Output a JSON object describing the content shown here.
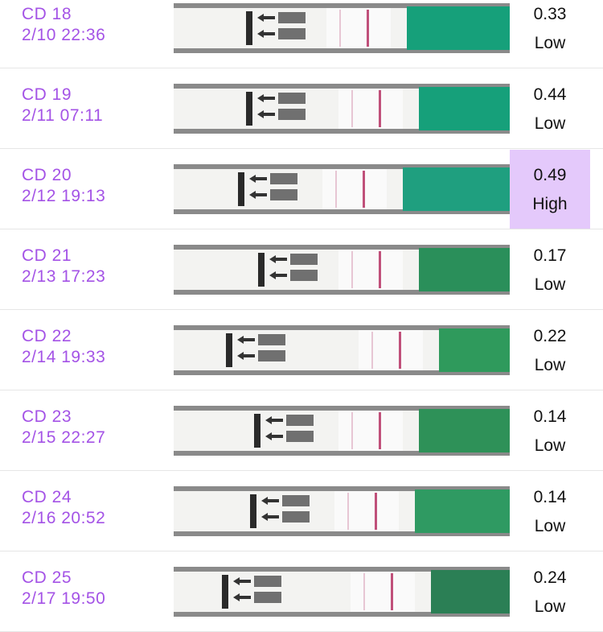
{
  "rows": [
    {
      "cd": "CD 18",
      "datetime": "2/10 22:36",
      "value": "0.33",
      "level": "Low",
      "highlighted": false
    },
    {
      "cd": "CD 19",
      "datetime": "2/11 07:11",
      "value": "0.44",
      "level": "Low",
      "highlighted": false
    },
    {
      "cd": "CD 20",
      "datetime": "2/12 19:13",
      "value": "0.49",
      "level": "High",
      "highlighted": true
    },
    {
      "cd": "CD 21",
      "datetime": "2/13 17:23",
      "value": "0.17",
      "level": "Low",
      "highlighted": false
    },
    {
      "cd": "CD 22",
      "datetime": "2/14 19:33",
      "value": "0.22",
      "level": "Low",
      "highlighted": false
    },
    {
      "cd": "CD 23",
      "datetime": "2/15 22:27",
      "value": "0.14",
      "level": "Low",
      "highlighted": false
    },
    {
      "cd": "CD 24",
      "datetime": "2/16 20:52",
      "value": "0.14",
      "level": "Low",
      "highlighted": false
    },
    {
      "cd": "CD 25",
      "datetime": "2/17 19:50",
      "value": "0.24",
      "level": "Low",
      "highlighted": false
    }
  ]
}
